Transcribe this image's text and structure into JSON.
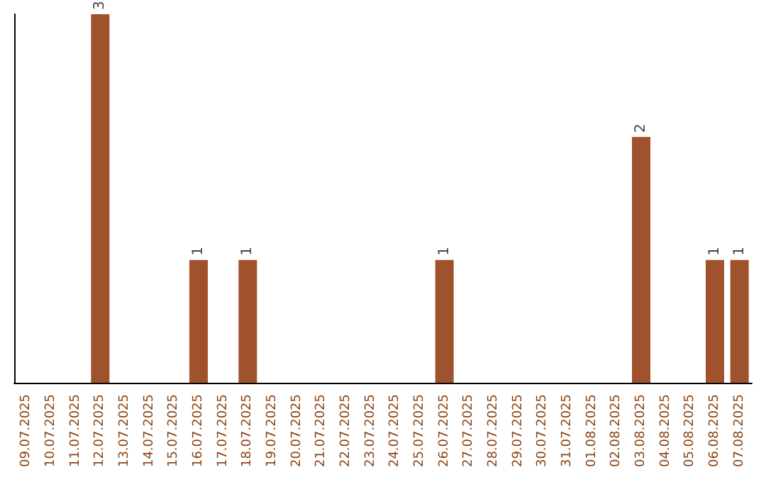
{
  "chart_data": {
    "type": "bar",
    "categories": [
      "09.07.2025",
      "10.07.2025",
      "11.07.2025",
      "12.07.2025",
      "13.07.2025",
      "14.07.2025",
      "15.07.2025",
      "16.07.2025",
      "17.07.2025",
      "18.07.2025",
      "19.07.2025",
      "20.07.2025",
      "21.07.2025",
      "22.07.2025",
      "23.07.2025",
      "24.07.2025",
      "25.07.2025",
      "26.07.2025",
      "27.07.2025",
      "28.07.2025",
      "29.07.2025",
      "30.07.2025",
      "31.07.2025",
      "01.08.2025",
      "02.08.2025",
      "03.08.2025",
      "04.08.2025",
      "05.08.2025",
      "06.08.2025",
      "07.08.2025"
    ],
    "values": [
      0,
      0,
      0,
      3,
      0,
      0,
      0,
      1,
      0,
      1,
      0,
      0,
      0,
      0,
      0,
      0,
      0,
      1,
      0,
      0,
      0,
      0,
      0,
      0,
      0,
      2,
      0,
      0,
      1,
      1
    ],
    "value_labels": [
      null,
      null,
      null,
      "3",
      null,
      null,
      null,
      "1",
      null,
      "1",
      null,
      null,
      null,
      null,
      null,
      null,
      null,
      "1",
      null,
      null,
      null,
      null,
      null,
      null,
      null,
      "2",
      null,
      null,
      "1",
      "1"
    ],
    "color": "#a0522d",
    "tick_labels": "x",
    "grid": false
  }
}
